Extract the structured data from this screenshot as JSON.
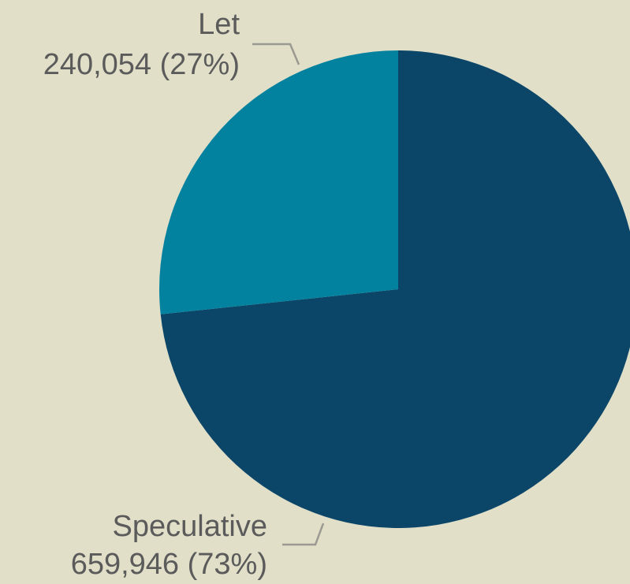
{
  "chart_data": {
    "type": "pie",
    "slices": [
      {
        "name": "Let",
        "value": 240054,
        "percent": 27,
        "label_value": "240,054 (27%)",
        "color": "#02829f"
      },
      {
        "name": "Speculative",
        "value": 659946,
        "percent": 73,
        "label_value": "659,946 (73%)",
        "color": "#0b4669"
      }
    ],
    "background_color": "#e1dfc8",
    "label_color": "#5b5b5b",
    "leader_color": "#9a9a92"
  }
}
